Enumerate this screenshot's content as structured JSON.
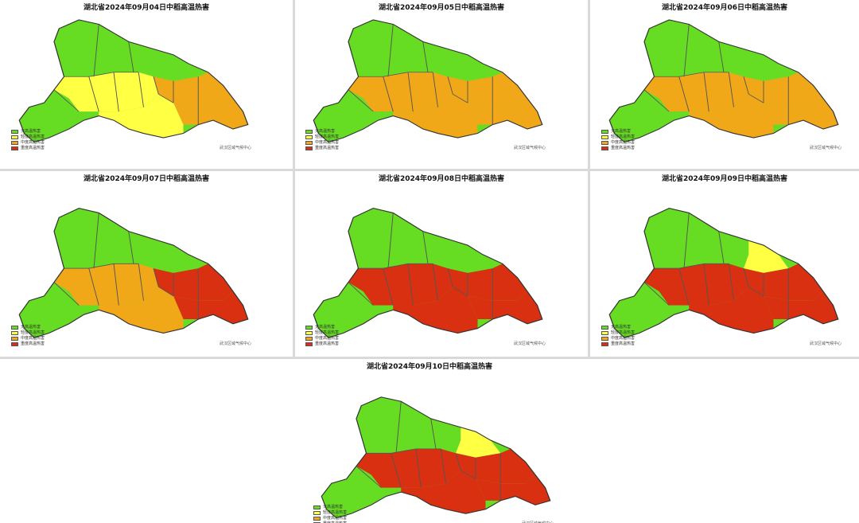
{
  "panels": [
    {
      "title": "湖北省2024年09月04日中稻高温热害",
      "status": {
        "west": "none",
        "north": "none",
        "center": "mild",
        "east": "moderate",
        "southeast": "moderate",
        "south": "mild"
      }
    },
    {
      "title": "湖北省2024年09月05日中稻高温热害",
      "status": {
        "west": "none",
        "north": "none",
        "center": "moderate",
        "east": "moderate",
        "southeast": "moderate",
        "south": "moderate"
      }
    },
    {
      "title": "湖北省2024年09月06日中稻高温热害",
      "status": {
        "west": "none",
        "north": "none",
        "center": "moderate",
        "east": "moderate",
        "southeast": "moderate",
        "south": "moderate"
      }
    },
    {
      "title": "湖北省2024年09月07日中稻高温热害",
      "status": {
        "west": "none",
        "north": "none",
        "center": "moderate",
        "east": "severe",
        "southeast": "severe",
        "south": "moderate"
      }
    },
    {
      "title": "湖北省2024年09月08日中稻高温热害",
      "status": {
        "west": "none",
        "north": "none",
        "center": "severe",
        "east": "severe",
        "southeast": "severe",
        "south": "severe"
      }
    },
    {
      "title": "湖北省2024年09月09日中稻高温热害",
      "status": {
        "west": "none",
        "north": "none",
        "center": "severe",
        "east": "severe",
        "southeast": "severe",
        "south": "severe",
        "northeast": "mild"
      }
    },
    {
      "title": "湖北省2024年09月10日中稻高温热害",
      "status": {
        "west": "none",
        "north": "none",
        "center": "severe",
        "east": "severe",
        "southeast": "severe",
        "south": "severe",
        "northeast": "mild"
      }
    }
  ],
  "legend": [
    {
      "label": "无高温热害",
      "color": "#66dd22"
    },
    {
      "label": "轻度高温热害",
      "color": "#ffff44"
    },
    {
      "label": "中度高温热害",
      "color": "#f0a818"
    },
    {
      "label": "重度高温热害",
      "color": "#d83010"
    }
  ],
  "credit": "武汉区域气候中心",
  "colors": {
    "none": "#66dd22",
    "mild": "#ffff44",
    "moderate": "#f0a818",
    "severe": "#d83010",
    "border": "#555555"
  }
}
